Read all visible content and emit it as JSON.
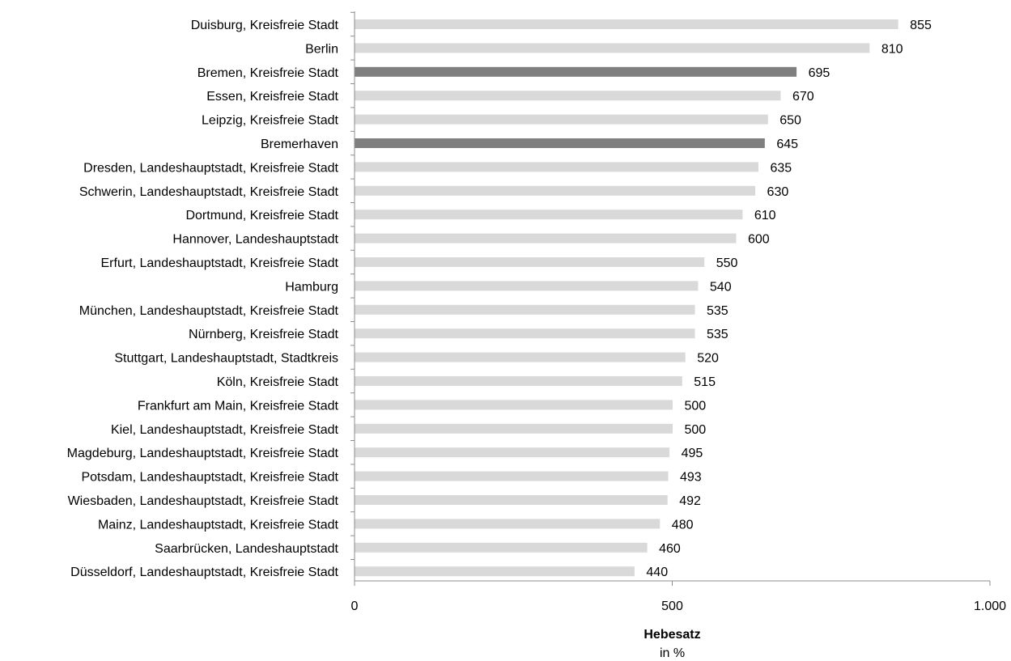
{
  "chart_data": {
    "type": "bar",
    "orientation": "horizontal",
    "categories": [
      "Duisburg, Kreisfreie Stadt",
      "Berlin",
      "Bremen, Kreisfreie Stadt",
      "Essen, Kreisfreie Stadt",
      "Leipzig, Kreisfreie Stadt",
      "Bremerhaven",
      "Dresden, Landeshauptstadt, Kreisfreie Stadt",
      "Schwerin, Landeshauptstadt, Kreisfreie Stadt",
      "Dortmund, Kreisfreie Stadt",
      "Hannover, Landeshauptstadt",
      "Erfurt, Landeshauptstadt, Kreisfreie Stadt",
      "Hamburg",
      "München, Landeshauptstadt, Kreisfreie Stadt",
      "Nürnberg, Kreisfreie Stadt",
      "Stuttgart, Landeshauptstadt, Stadtkreis",
      "Köln, Kreisfreie Stadt",
      "Frankfurt am Main, Kreisfreie Stadt",
      "Kiel, Landeshauptstadt, Kreisfreie Stadt",
      "Magdeburg, Landeshauptstadt, Kreisfreie Stadt",
      "Potsdam, Landeshauptstadt, Kreisfreie Stadt",
      "Wiesbaden, Landeshauptstadt, Kreisfreie Stadt",
      "Mainz, Landeshauptstadt, Kreisfreie Stadt",
      "Saarbrücken, Landeshauptstadt",
      "Düsseldorf, Landeshauptstadt, Kreisfreie Stadt"
    ],
    "values": [
      855,
      810,
      695,
      670,
      650,
      645,
      635,
      630,
      610,
      600,
      550,
      540,
      535,
      535,
      520,
      515,
      500,
      500,
      495,
      493,
      492,
      480,
      460,
      440
    ],
    "value_labels": [
      "855",
      "810",
      "695",
      "670",
      "650",
      "645",
      "635",
      "630",
      "610",
      "600",
      "550",
      "540",
      "535",
      "535",
      "520",
      "515",
      "500",
      "500",
      "495",
      "493",
      "492",
      "480",
      "460",
      "440"
    ],
    "highlighted": [
      "Bremen, Kreisfreie Stadt",
      "Bremerhaven"
    ],
    "colors": {
      "bar": "#d9d9d9",
      "bar_highlight": "#7f7f7f",
      "axis": "#8c8c8c"
    },
    "xlim": [
      0,
      1000
    ],
    "xticks": [
      0,
      500,
      1000
    ],
    "xtick_labels": [
      "0",
      "500",
      "1.000"
    ],
    "xlabel": "Hebesatz",
    "xlabel_sub": "in %",
    "title": "",
    "grid": false,
    "legend": "none"
  }
}
